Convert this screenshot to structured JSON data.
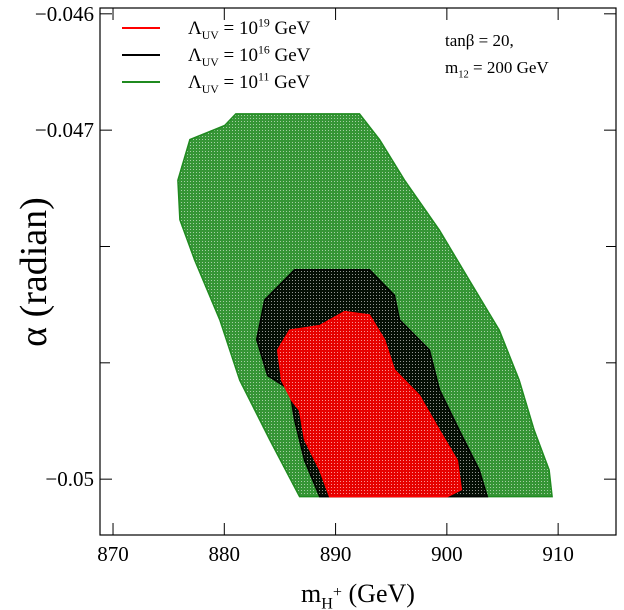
{
  "chart_data": {
    "type": "region",
    "xlabel": "m_H^+ (GeV)",
    "ylabel": "α (radian)",
    "annotations": [
      "tanβ = 20,",
      "m_12 = 200 GeV"
    ],
    "xlim": [
      868.83,
      915.2
    ],
    "xticks": [
      870,
      880,
      890,
      900,
      910
    ],
    "ylim": [
      -0.05048,
      -0.04595
    ],
    "yticks": [
      {
        "value": -0.046,
        "label": "−0.046"
      },
      {
        "value": -0.047,
        "label": "−0.047"
      },
      {
        "value": -0.05,
        "label": "−0.05"
      }
    ],
    "yminor_ticks": [
      -0.048,
      -0.049
    ],
    "legend": "upper left",
    "series": [
      {
        "name": "Λ_UV = 10^11 GeV",
        "color": "#1f8a1f",
        "x": [
          881.03,
          892.15,
          893.95,
          896.19,
          899.33,
          902.02,
          904.71,
          906.5,
          907.85,
          909.19,
          909.46,
          886.77,
          884.08,
          881.39,
          879.6,
          877.35,
          876.01,
          875.83,
          876.91,
          880.04
        ],
        "y": [
          -0.04686,
          -0.04686,
          -0.04708,
          -0.04743,
          -0.04786,
          -0.04829,
          -0.04872,
          -0.04915,
          -0.04958,
          -0.04992,
          -0.05015,
          -0.05015,
          -0.04966,
          -0.04915,
          -0.04863,
          -0.04812,
          -0.04777,
          -0.04743,
          -0.04708,
          -0.04696
        ]
      },
      {
        "name": "Λ_UV = 10^16 GeV",
        "color": "#000000",
        "x": [
          886.32,
          893.05,
          895.29,
          895.74,
          898.43,
          899.33,
          901.12,
          902.91,
          903.63,
          888.57,
          887.22,
          886.32,
          885.87,
          883.9,
          882.91,
          883.63
        ],
        "y": [
          -0.0482,
          -0.0482,
          -0.04842,
          -0.04863,
          -0.04889,
          -0.04923,
          -0.04958,
          -0.04992,
          -0.05015,
          -0.05015,
          -0.04984,
          -0.04949,
          -0.04923,
          -0.04911,
          -0.0488,
          -0.04846
        ]
      },
      {
        "name": "Λ_UV = 10^19 GeV",
        "color": "#ff0000",
        "x": [
          890.81,
          893.05,
          894.39,
          895.29,
          897.53,
          899.33,
          900.94,
          901.3,
          900.04,
          889.46,
          888.57,
          887.22,
          886.77,
          886.05,
          885.16,
          884.8,
          885.87,
          888.57
        ],
        "y": [
          -0.04856,
          -0.04859,
          -0.0488,
          -0.04906,
          -0.04928,
          -0.04958,
          -0.04984,
          -0.05009,
          -0.05015,
          -0.05015,
          -0.04992,
          -0.04966,
          -0.04941,
          -0.04932,
          -0.04915,
          -0.04889,
          -0.04872,
          -0.04868
        ]
      }
    ]
  }
}
